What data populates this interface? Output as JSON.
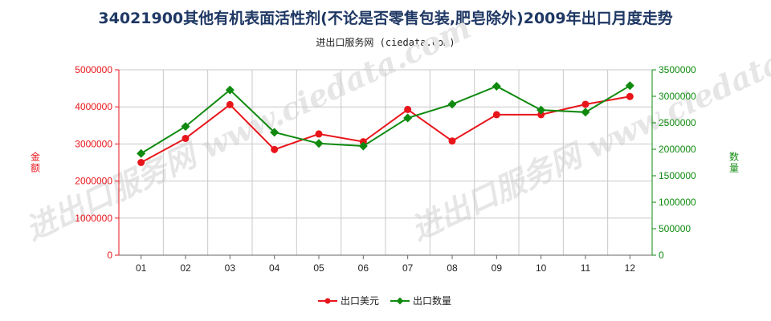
{
  "title": "34021900其他有机表面活性剂(不论是否零售包装,肥皂除外)2009年出口月度走势",
  "subtitle": "进出口服务网 (ciedata.com)",
  "watermark": "进出口服务网 www.ciedata.com",
  "colors": {
    "series1": "#e8151b",
    "series2": "#0f8a0f",
    "grid": "#c8c8c8"
  },
  "chart_data": {
    "type": "line",
    "categories": [
      "01",
      "02",
      "03",
      "04",
      "05",
      "06",
      "07",
      "08",
      "09",
      "10",
      "11",
      "12"
    ],
    "left_axis": {
      "label": "金额",
      "ylim": [
        0,
        5000000
      ],
      "ticks": [
        "0",
        "1000000",
        "2000000",
        "3000000",
        "4000000",
        "5000000"
      ]
    },
    "right_axis": {
      "label": "数量",
      "ylim": [
        0,
        3500000
      ],
      "ticks": [
        "0",
        "500000",
        "1000000",
        "1500000",
        "2000000",
        "2500000",
        "3000000",
        "3500000"
      ]
    },
    "series": [
      {
        "name": "出口美元",
        "axis": "left",
        "values": [
          2500000,
          3150000,
          4060000,
          2850000,
          3270000,
          3060000,
          3930000,
          3080000,
          3790000,
          3790000,
          4070000,
          4280000
        ]
      },
      {
        "name": "出口数量",
        "axis": "right",
        "values": [
          1920000,
          2430000,
          3120000,
          2320000,
          2110000,
          2060000,
          2590000,
          2850000,
          3190000,
          2740000,
          2700000,
          3200000
        ]
      }
    ],
    "grid": true,
    "legend_position": "bottom"
  }
}
